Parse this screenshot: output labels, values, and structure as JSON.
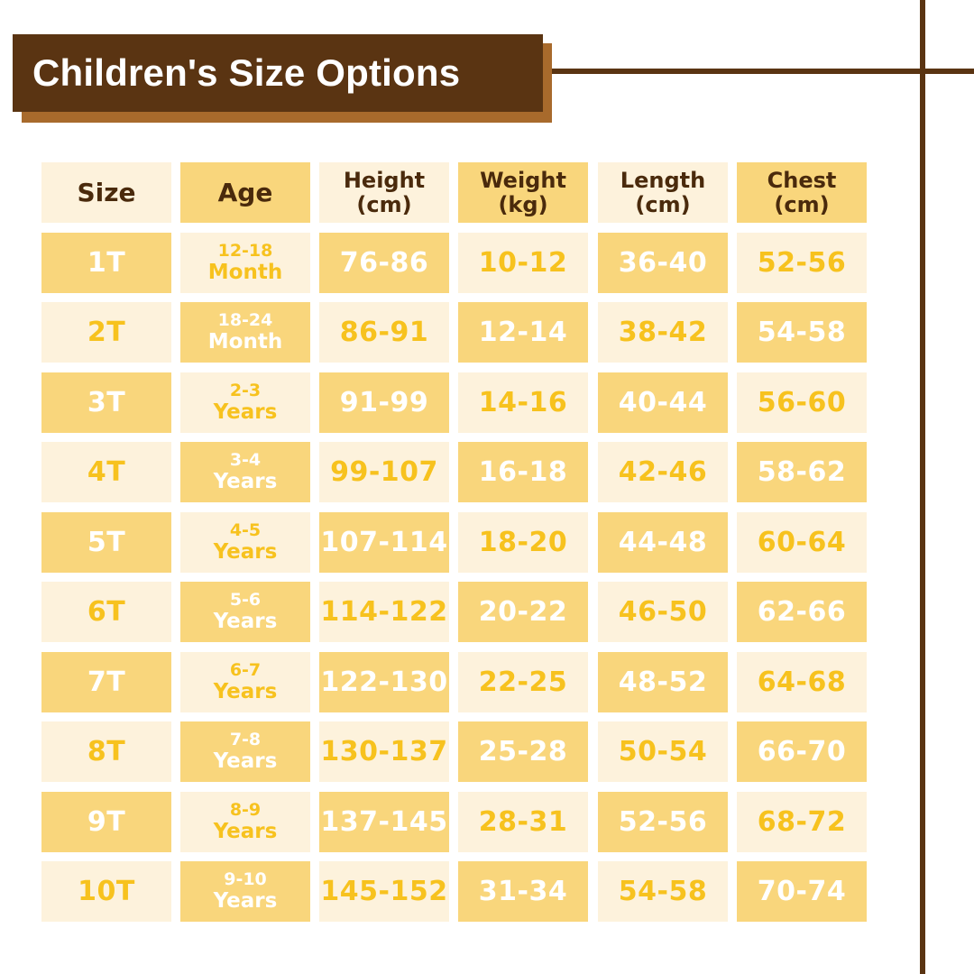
{
  "title": "Children's Size Options",
  "headers": {
    "size": "Size",
    "age": "Age",
    "height": [
      "Height",
      "(cm)"
    ],
    "weight": [
      "Weight",
      "(kg)"
    ],
    "length": [
      "Length",
      "(cm)"
    ],
    "chest": [
      "Chest",
      "(cm)"
    ]
  },
  "rows": [
    {
      "size": "1T",
      "age": [
        "12-18",
        "Month"
      ],
      "height": "76-86",
      "weight": "10-12",
      "length": "36-40",
      "chest": "52-56"
    },
    {
      "size": "2T",
      "age": [
        "18-24",
        "Month"
      ],
      "height": "86-91",
      "weight": "12-14",
      "length": "38-42",
      "chest": "54-58"
    },
    {
      "size": "3T",
      "age": [
        "2-3",
        "Years"
      ],
      "height": "91-99",
      "weight": "14-16",
      "length": "40-44",
      "chest": "56-60"
    },
    {
      "size": "4T",
      "age": [
        "3-4",
        "Years"
      ],
      "height": "99-107",
      "weight": "16-18",
      "length": "42-46",
      "chest": "58-62"
    },
    {
      "size": "5T",
      "age": [
        "4-5",
        "Years"
      ],
      "height": "107-114",
      "weight": "18-20",
      "length": "44-48",
      "chest": "60-64"
    },
    {
      "size": "6T",
      "age": [
        "5-6",
        "Years"
      ],
      "height": "114-122",
      "weight": "20-22",
      "length": "46-50",
      "chest": "62-66"
    },
    {
      "size": "7T",
      "age": [
        "6-7",
        "Years"
      ],
      "height": "122-130",
      "weight": "22-25",
      "length": "48-52",
      "chest": "64-68"
    },
    {
      "size": "8T",
      "age": [
        "7-8",
        "Years"
      ],
      "height": "130-137",
      "weight": "25-28",
      "length": "50-54",
      "chest": "66-70"
    },
    {
      "size": "9T",
      "age": [
        "8-9",
        "Years"
      ],
      "height": "137-145",
      "weight": "28-31",
      "length": "52-56",
      "chest": "68-72"
    },
    {
      "size": "10T",
      "age": [
        "9-10",
        "Years"
      ],
      "height": "145-152",
      "weight": "31-34",
      "length": "54-58",
      "chest": "70-74"
    }
  ],
  "colors": {
    "brown": "#5a3412",
    "title_shadow": "#a86a2c",
    "cell_light": "#fdf2dc",
    "cell_dark": "#f9d67c",
    "text_yellow": "#f7c21e",
    "text_white": "#ffffff",
    "header_text": "#4a2a0c"
  }
}
